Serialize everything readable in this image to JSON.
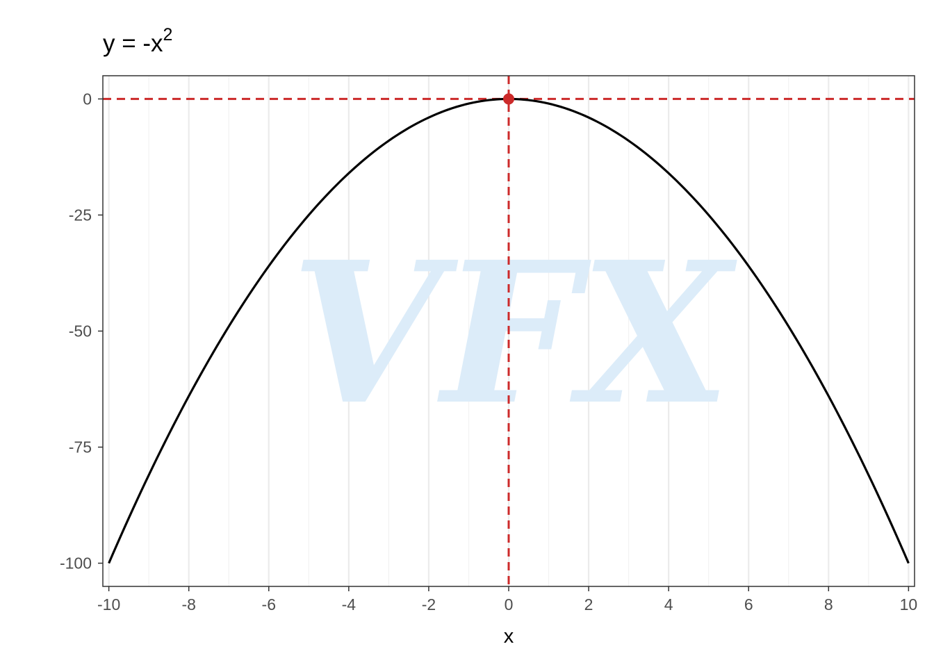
{
  "chart_data": {
    "type": "line",
    "title": {
      "base": "y = -x",
      "superscript": "2"
    },
    "xlabel": "x",
    "ylabel": "",
    "xlim": [
      -10.15,
      10.15
    ],
    "ylim": [
      -105,
      5
    ],
    "x_ticks": [
      -10,
      -8,
      -6,
      -4,
      -2,
      0,
      2,
      4,
      6,
      8,
      10
    ],
    "x_tick_labels": [
      "-10",
      "-8",
      "-6",
      "-4",
      "-2",
      "0",
      "2",
      "4",
      "6",
      "8",
      "10"
    ],
    "y_ticks": [
      0,
      -25,
      -50,
      -75,
      -100
    ],
    "y_tick_labels": [
      "0",
      "-25",
      "-50",
      "-75",
      "-100"
    ],
    "grid": {
      "major_x": true,
      "minor_x": true,
      "y": false
    },
    "series": [
      {
        "function": "y = -x^2",
        "x_range": [
          -10,
          10
        ],
        "x": [
          -10,
          -9,
          -8,
          -7,
          -6,
          -5,
          -4,
          -3,
          -2,
          -1,
          0,
          1,
          2,
          3,
          4,
          5,
          6,
          7,
          8,
          9,
          10
        ],
        "y": [
          -100,
          -81,
          -64,
          -49,
          -36,
          -25,
          -16,
          -9,
          -4,
          -1,
          0,
          -1,
          -4,
          -9,
          -16,
          -25,
          -36,
          -49,
          -64,
          -81,
          -100
        ],
        "color": "#000000"
      }
    ],
    "annotations": {
      "vertex": {
        "x": 0,
        "y": 0,
        "color": "#cc2a2a"
      },
      "hline": {
        "y": 0,
        "style": "dashed",
        "color": "#cc2a2a"
      },
      "vline": {
        "x": 0,
        "style": "dashed",
        "color": "#cc2a2a"
      }
    },
    "watermark": {
      "text": "VFX",
      "color": "#dcecf9"
    }
  }
}
